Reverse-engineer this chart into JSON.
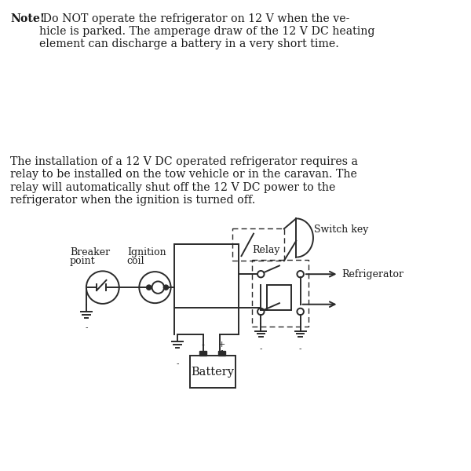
{
  "bg_color": "#ffffff",
  "text_color": "#1a1a1a",
  "line_color": "#2a2a2a",
  "note_bold": "Note!",
  "note_rest": " Do NOT operate the refrigerator on 12 V when the ve-\nhicle is parked. The amperage draw of the 12 V DC heating\nelement can discharge a battery in a very short time.",
  "para2": "The installation of a 12 V DC operated refrigerator requires a\nrelay to be installed on the tow vehicle or in the caravan. The\nrelay will automatically shut off the 12 V DC power to the\nrefrigerator when the ignition is turned off.",
  "label_breaker": "Breaker  Ignition",
  "label_point": "point",
  "label_coil": "coil",
  "label_switch": "Switch key",
  "label_relay": "Relay",
  "label_refrigerator": "Refrigerator",
  "label_battery": "Battery",
  "fontsize_text": 10.2,
  "fontsize_label": 9.0
}
